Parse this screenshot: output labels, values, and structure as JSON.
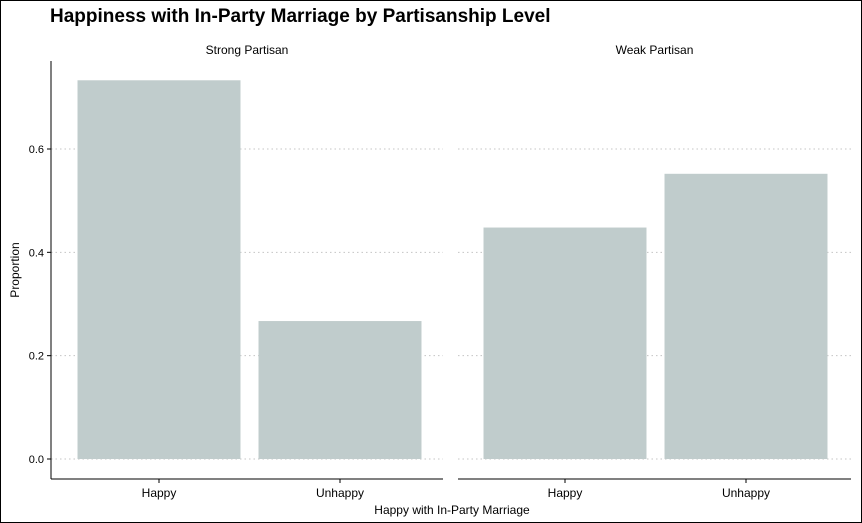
{
  "chart_data": {
    "type": "bar",
    "title": "Happiness with In-Party Marriage by Partisanship Level",
    "xlabel": "Happy with In-Party Marriage",
    "ylabel": "Proportion",
    "categories": [
      "Happy",
      "Unhappy"
    ],
    "ylim": [
      0,
      0.75
    ],
    "yticks": [
      0.0,
      0.2,
      0.4,
      0.6
    ],
    "ytick_labels": [
      "0.0",
      "0.2",
      "0.4",
      "0.6"
    ],
    "grid": "horizontal dotted",
    "bar_color": "#c0cccc",
    "facets": [
      {
        "label": "Strong Partisan",
        "values": [
          0.733,
          0.267
        ]
      },
      {
        "label": "Weak Partisan",
        "values": [
          0.448,
          0.552
        ]
      }
    ]
  }
}
